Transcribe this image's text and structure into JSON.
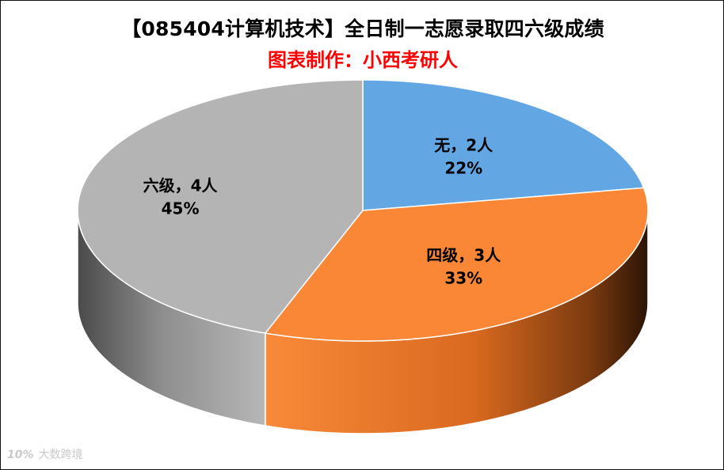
{
  "title": "【085404计算机技术】全日制一志愿录取四六级成绩",
  "subtitle": "图表制作：小西考研人",
  "watermark": {
    "logo": "10%",
    "text": "大数跨境"
  },
  "colors": {
    "slice_none": "#62a7e3",
    "slice_cet4": "#fa8736",
    "slice_cet6": "#b4b4b4",
    "subtitle": "#ff0000"
  },
  "chart_data": {
    "type": "pie",
    "title": "【085404计算机技术】全日制一志愿录取四六级成绩",
    "subtitle": "图表制作：小西考研人",
    "style": "3d",
    "categories": [
      "无",
      "四级",
      "六级"
    ],
    "values": [
      2,
      3,
      4
    ],
    "unit": "人",
    "percent_labels": [
      "22%",
      "33%",
      "45%"
    ],
    "labels": [
      {
        "category_line": "无，2人",
        "percent_line": "22%"
      },
      {
        "category_line": "四级，3人",
        "percent_line": "33%"
      },
      {
        "category_line": "六级，4人",
        "percent_line": "45%"
      }
    ],
    "start": "12 o'clock",
    "direction": "clockwise",
    "legend": "none"
  }
}
